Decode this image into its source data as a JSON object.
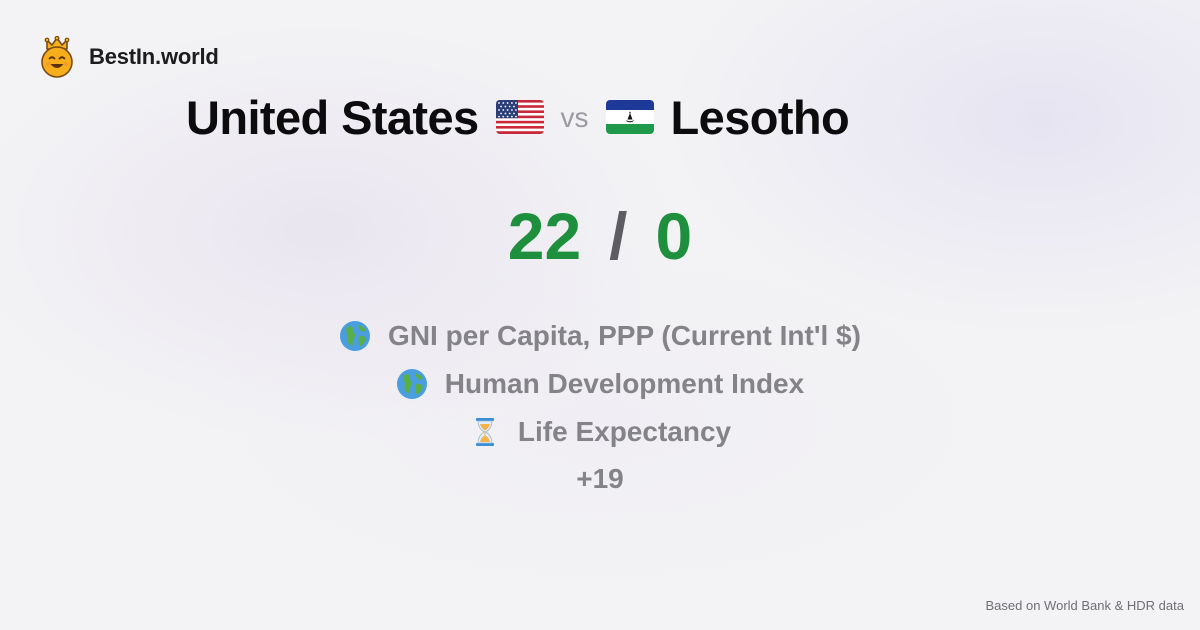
{
  "brand": {
    "name": "BestIn.world",
    "logo": "crowned-smiley-icon"
  },
  "comparison": {
    "left": {
      "country": "United States",
      "flag": "flag-us-icon",
      "score": "22"
    },
    "vs_label": "vs",
    "right": {
      "country": "Lesotho",
      "flag": "flag-ls-icon",
      "score": "0"
    },
    "score_separator": "/"
  },
  "metrics": [
    {
      "icon": "globe-icon",
      "label": "GNI per Capita, PPP (Current Int'l $)"
    },
    {
      "icon": "globe-icon",
      "label": "Human Development Index"
    },
    {
      "icon": "hourglass-icon",
      "label": "Life Expectancy"
    }
  ],
  "more_count": "+19",
  "footer": {
    "source": "Based on World Bank & HDR data"
  },
  "colors": {
    "score": "#1e8f3c",
    "metric_text": "#838388",
    "title_text": "#0c0c0e"
  }
}
